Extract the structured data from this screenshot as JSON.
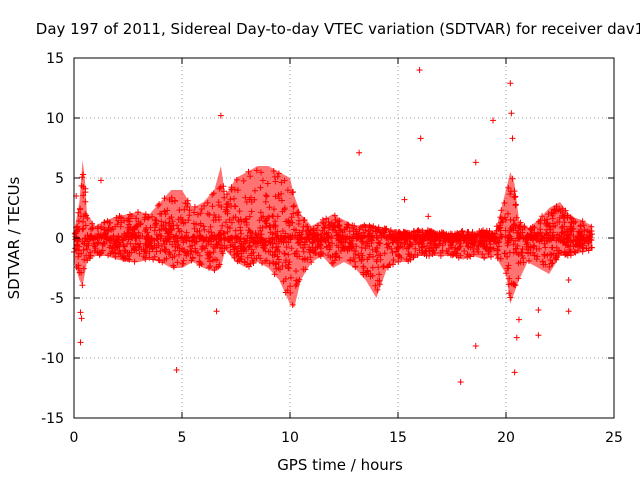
{
  "chart_data": {
    "type": "scatter",
    "title": "Day 197 of 2011, Sidereal Day-to-day VTEC variation (SDTVAR) for receiver dav1",
    "xlabel": "GPS time / hours",
    "ylabel": "SDTVAR / TECUs",
    "xlim": [
      0,
      25
    ],
    "ylim": [
      -15,
      15
    ],
    "xticks": [
      0,
      5,
      10,
      15,
      20,
      25
    ],
    "yticks": [
      -15,
      -10,
      -5,
      0,
      5,
      10,
      15
    ],
    "xtick_labels": [
      "0",
      "5",
      "10",
      "15",
      "20",
      "25"
    ],
    "ytick_labels": [
      "-15",
      "-10",
      "-5",
      "0",
      "5",
      "10",
      "15"
    ],
    "grid": true,
    "marker": "+",
    "color": "#ff0000",
    "band_series": {
      "name": "SDTVAR (dense samples, envelope)",
      "x": [
        0.0,
        0.25,
        0.4,
        0.5,
        0.6,
        1.0,
        1.5,
        2.0,
        2.5,
        3.0,
        3.5,
        4.0,
        4.5,
        5.0,
        5.5,
        6.0,
        6.5,
        6.8,
        7.0,
        7.5,
        8.0,
        8.5,
        9.0,
        9.5,
        10.0,
        10.2,
        10.5,
        11.0,
        11.5,
        12.0,
        12.5,
        13.0,
        13.5,
        14.0,
        14.5,
        15.0,
        15.5,
        16.0,
        16.5,
        17.0,
        17.5,
        18.0,
        18.5,
        19.0,
        19.5,
        20.0,
        20.2,
        20.4,
        20.6,
        21.0,
        21.5,
        22.0,
        22.5,
        23.0,
        23.5,
        24.0
      ],
      "upper": [
        0.5,
        3.0,
        6.5,
        5.0,
        2.0,
        1.0,
        1.5,
        1.8,
        2.0,
        2.2,
        2.0,
        3.0,
        4.0,
        4.0,
        2.5,
        3.0,
        4.0,
        6.0,
        3.5,
        5.0,
        5.5,
        6.0,
        6.0,
        5.5,
        5.0,
        3.5,
        2.0,
        1.0,
        1.5,
        2.0,
        1.5,
        1.0,
        1.2,
        1.0,
        0.8,
        0.6,
        0.5,
        0.8,
        0.6,
        0.5,
        0.4,
        0.6,
        0.5,
        0.7,
        0.5,
        4.0,
        5.5,
        4.5,
        1.5,
        0.8,
        1.5,
        2.5,
        3.0,
        1.8,
        1.5,
        1.0
      ],
      "lower": [
        -2.0,
        -3.5,
        -4.0,
        -3.0,
        -2.0,
        -1.5,
        -1.5,
        -1.8,
        -2.0,
        -2.0,
        -1.8,
        -2.0,
        -2.5,
        -2.5,
        -2.0,
        -2.5,
        -2.8,
        -2.5,
        -1.0,
        -2.0,
        -2.5,
        -2.0,
        -2.5,
        -3.5,
        -5.5,
        -5.8,
        -3.5,
        -2.0,
        -1.5,
        -2.5,
        -2.0,
        -2.5,
        -3.5,
        -5.0,
        -2.5,
        -2.0,
        -2.0,
        -1.5,
        -1.5,
        -1.5,
        -1.5,
        -1.8,
        -1.5,
        -1.8,
        -1.5,
        -3.0,
        -5.5,
        -4.5,
        -3.5,
        -2.0,
        -2.5,
        -3.0,
        -1.5,
        -1.5,
        -1.2,
        -1.0
      ]
    },
    "outliers": {
      "name": "SDTVAR (isolated samples)",
      "x": [
        16.0,
        20.2,
        20.25,
        20.3,
        19.4,
        16.05,
        13.2,
        18.6,
        15.3,
        16.4,
        6.8,
        1.25,
        0.1,
        0.3,
        0.35,
        0.3,
        4.75,
        6.6,
        17.9,
        18.6,
        20.4,
        20.6,
        21.5,
        21.5,
        22.9,
        22.9,
        20.5
      ],
      "y": [
        14.0,
        12.9,
        10.4,
        8.3,
        9.8,
        8.3,
        7.1,
        6.3,
        3.2,
        1.8,
        10.2,
        4.8,
        3.5,
        -6.2,
        -6.7,
        -8.7,
        -11.0,
        -6.1,
        -12.0,
        -9.0,
        -11.2,
        -6.8,
        -8.1,
        -6.0,
        -6.1,
        -3.5,
        -8.3
      ]
    }
  }
}
